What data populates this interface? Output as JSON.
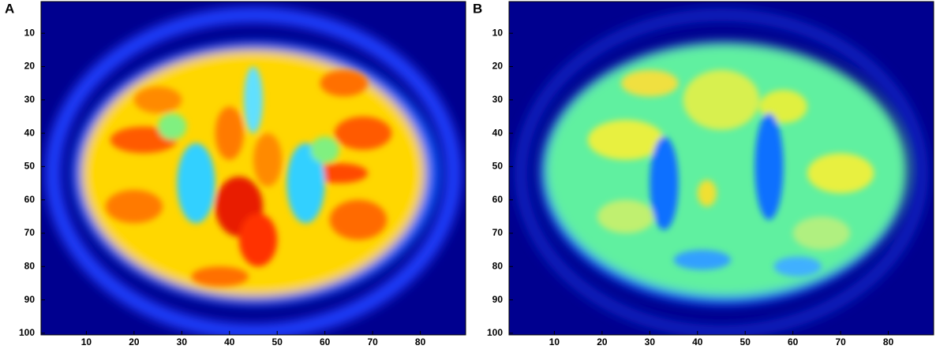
{
  "chart_data": [
    {
      "type": "image",
      "title": "A",
      "xlim": [
        0.5,
        89.5
      ],
      "ylim": [
        100.5,
        0.5
      ],
      "xticks": [
        10,
        20,
        30,
        40,
        50,
        60,
        70,
        80
      ],
      "yticks": [
        10,
        20,
        30,
        40,
        50,
        60,
        70,
        80,
        90,
        100
      ]
    },
    {
      "type": "image",
      "title": "B",
      "xlim": [
        0.5,
        89.5
      ],
      "ylim": [
        100.5,
        0.5
      ],
      "xticks": [
        10,
        20,
        30,
        40,
        50,
        60,
        70,
        80
      ],
      "yticks": [
        10,
        20,
        30,
        40,
        50,
        60,
        70,
        80,
        90,
        100
      ]
    }
  ]
}
